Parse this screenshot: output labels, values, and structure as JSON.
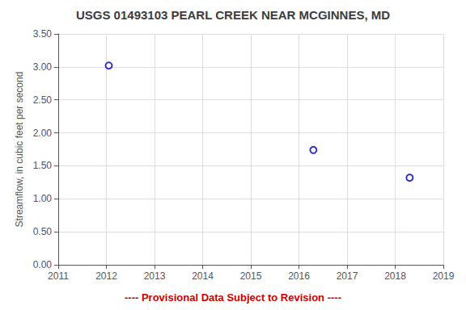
{
  "chart_data": {
    "type": "scatter",
    "title": "USGS 01493103 PEARL CREEK NEAR MCGINNES, MD",
    "ylabel": "Streamflow, in cubic feet per second",
    "x": [
      2012.05,
      2016.3,
      2018.3
    ],
    "values": [
      3.02,
      1.74,
      1.32
    ],
    "color": "#0000bb",
    "marker": "circle",
    "xlim": [
      2011,
      2019
    ],
    "ylim": [
      0.0,
      3.5
    ],
    "xticks": [
      2011,
      2012,
      2013,
      2014,
      2015,
      2016,
      2017,
      2018,
      2019
    ],
    "yticks": [
      {
        "value": 0.0,
        "label": "0.00"
      },
      {
        "value": 0.5,
        "label": "0.50"
      },
      {
        "value": 1.0,
        "label": "1.00"
      },
      {
        "value": 1.5,
        "label": "1.50"
      },
      {
        "value": 2.0,
        "label": "2.00"
      },
      {
        "value": 2.5,
        "label": "2.50"
      },
      {
        "value": 3.0,
        "label": "3.00"
      },
      {
        "value": 3.5,
        "label": "3.50"
      }
    ],
    "grid": true,
    "annotations": [
      {
        "text": "---- Provisional Data Subject to Revision ----",
        "color": "#cc0000"
      }
    ]
  }
}
